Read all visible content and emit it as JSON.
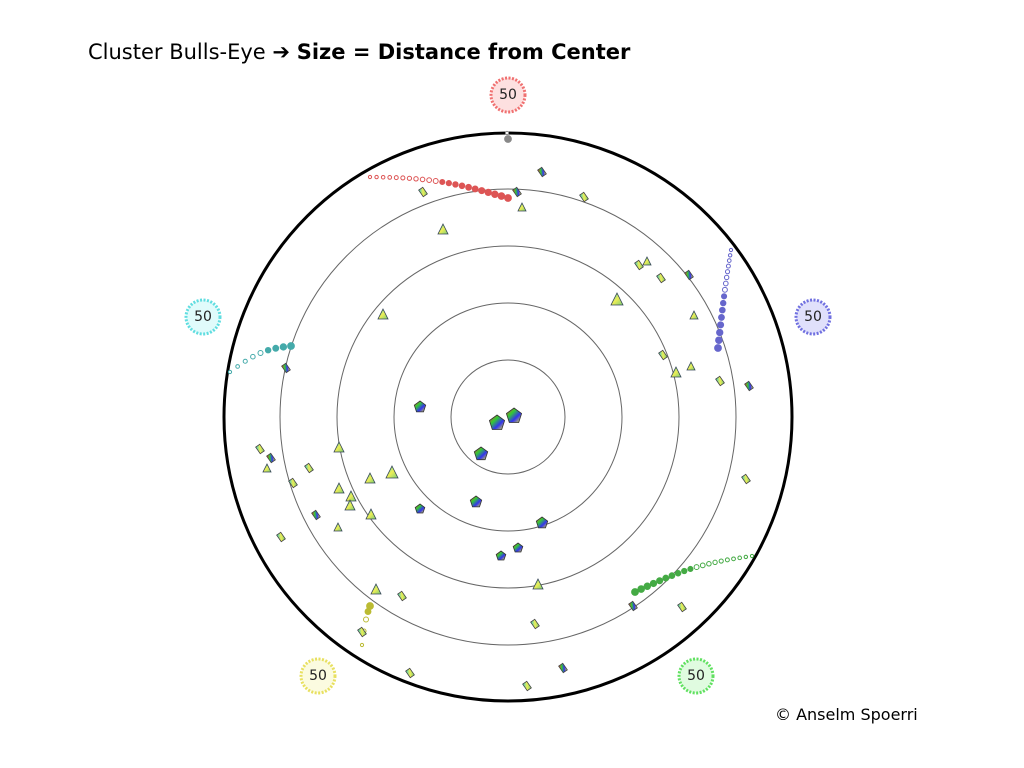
{
  "title": {
    "prefix": "Cluster Bulls-Eye",
    "arrow": "➔",
    "emphasis": "Size = Distance from Center"
  },
  "badges": [
    {
      "label": "50"
    },
    {
      "label": "50"
    },
    {
      "label": "50"
    },
    {
      "label": "50"
    },
    {
      "label": "50"
    }
  ],
  "footer": {
    "copyright": "© Anselm Spoerri"
  }
}
